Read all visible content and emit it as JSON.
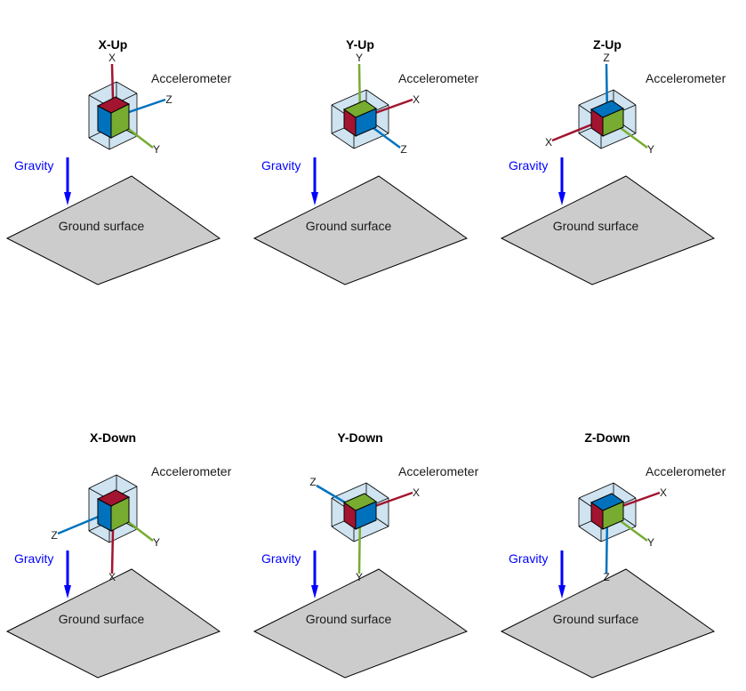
{
  "colors": {
    "red": "#A2142F",
    "blue": "#0072BD",
    "green": "#77AC30",
    "box_fill": "#cfe3f0",
    "ground_fill": "#cccccc",
    "gravity": "#0000ff"
  },
  "panels": [
    {
      "title": "X-Up",
      "accelerometer_label": "Accelerometer",
      "gravity_label": "Gravity",
      "ground_label": "Ground surface",
      "face_colors": {
        "top": "red",
        "left": "blue",
        "right": "green"
      },
      "axes": [
        {
          "label": "X",
          "direction": "up",
          "color": "red"
        },
        {
          "label": "Z",
          "direction": "right-up",
          "color": "blue"
        },
        {
          "label": "Y",
          "direction": "right-down",
          "color": "green"
        }
      ]
    },
    {
      "title": "Y-Up",
      "accelerometer_label": "Accelerometer",
      "gravity_label": "Gravity",
      "ground_label": "Ground surface",
      "face_colors": {
        "top": "green",
        "left": "red",
        "right": "blue"
      },
      "axes": [
        {
          "label": "Y",
          "direction": "up",
          "color": "green"
        },
        {
          "label": "X",
          "direction": "right-up",
          "color": "red"
        },
        {
          "label": "Z",
          "direction": "right-down",
          "color": "blue"
        }
      ]
    },
    {
      "title": "Z-Up",
      "accelerometer_label": "Accelerometer",
      "gravity_label": "Gravity",
      "ground_label": "Ground surface",
      "face_colors": {
        "top": "blue",
        "left": "red",
        "right": "green"
      },
      "axes": [
        {
          "label": "Z",
          "direction": "up",
          "color": "blue"
        },
        {
          "label": "X",
          "direction": "left-down",
          "color": "red"
        },
        {
          "label": "Y",
          "direction": "right-down",
          "color": "green"
        }
      ]
    },
    {
      "title": "X-Down",
      "accelerometer_label": "Accelerometer",
      "gravity_label": "Gravity",
      "ground_label": "Ground surface",
      "face_colors": {
        "top": "red",
        "left": "blue",
        "right": "green"
      },
      "axes": [
        {
          "label": "X",
          "direction": "down",
          "color": "red"
        },
        {
          "label": "Z",
          "direction": "left-down",
          "color": "blue"
        },
        {
          "label": "Y",
          "direction": "right-down",
          "color": "green"
        }
      ]
    },
    {
      "title": "Y-Down",
      "accelerometer_label": "Accelerometer",
      "gravity_label": "Gravity",
      "ground_label": "Ground surface",
      "face_colors": {
        "top": "green",
        "left": "red",
        "right": "blue"
      },
      "axes": [
        {
          "label": "Y",
          "direction": "down",
          "color": "green"
        },
        {
          "label": "Z",
          "direction": "left-up",
          "color": "blue"
        },
        {
          "label": "X",
          "direction": "right-up",
          "color": "red"
        }
      ]
    },
    {
      "title": "Z-Down",
      "accelerometer_label": "Accelerometer",
      "gravity_label": "Gravity",
      "ground_label": "Ground surface",
      "face_colors": {
        "top": "blue",
        "left": "red",
        "right": "green"
      },
      "axes": [
        {
          "label": "Z",
          "direction": "down",
          "color": "blue"
        },
        {
          "label": "X",
          "direction": "right-up",
          "color": "red"
        },
        {
          "label": "Y",
          "direction": "right-down",
          "color": "green"
        }
      ]
    }
  ]
}
